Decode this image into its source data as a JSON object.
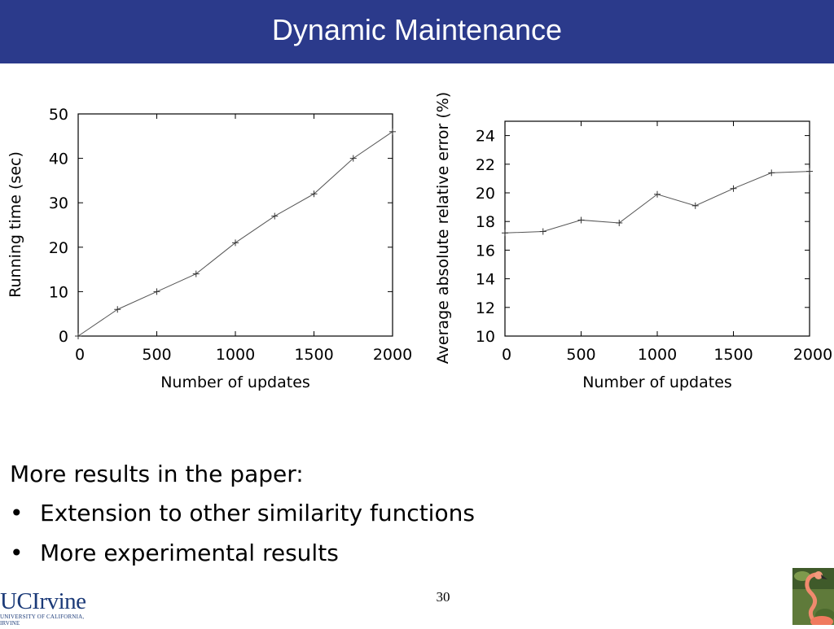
{
  "slide": {
    "title": "Dynamic Maintenance",
    "page_number": "30"
  },
  "notes": {
    "lead": "More results in the paper:",
    "bullets": [
      "Extension to other similarity functions",
      "More experimental results"
    ]
  },
  "logo": {
    "name": "UCIrvine",
    "subtitle": "UNIVERSITY OF CALIFORNIA, IRVINE"
  },
  "icons": {
    "bullet": "•",
    "mascot": "flamingo-icon"
  },
  "colors": {
    "title_bar": "#2b3a8b",
    "logo_text": "#1b3a78"
  },
  "chart_data": [
    {
      "type": "line",
      "xlabel": "Number of updates",
      "ylabel": "Running time (sec)",
      "xlim": [
        0,
        2000
      ],
      "ylim": [
        0,
        50
      ],
      "xticks": [
        0,
        500,
        1000,
        1500,
        2000
      ],
      "yticks": [
        0,
        10,
        20,
        30,
        40,
        50
      ],
      "grid": false,
      "x": [
        0,
        250,
        500,
        750,
        1000,
        1250,
        1500,
        1750,
        2000
      ],
      "y": [
        0,
        6,
        10,
        14,
        21,
        27,
        32,
        40,
        46
      ]
    },
    {
      "type": "line",
      "xlabel": "Number of updates",
      "ylabel": "Average absolute relative error (%)",
      "xlim": [
        0,
        2000
      ],
      "ylim": [
        10,
        25
      ],
      "xticks": [
        0,
        500,
        1000,
        1500,
        2000
      ],
      "yticks": [
        10,
        12,
        14,
        16,
        18,
        20,
        22,
        24
      ],
      "grid": false,
      "x": [
        0,
        250,
        500,
        750,
        1000,
        1250,
        1500,
        1750,
        2000
      ],
      "y": [
        17.2,
        17.3,
        18.1,
        17.9,
        19.9,
        19.1,
        20.3,
        21.4,
        21.5
      ]
    }
  ]
}
